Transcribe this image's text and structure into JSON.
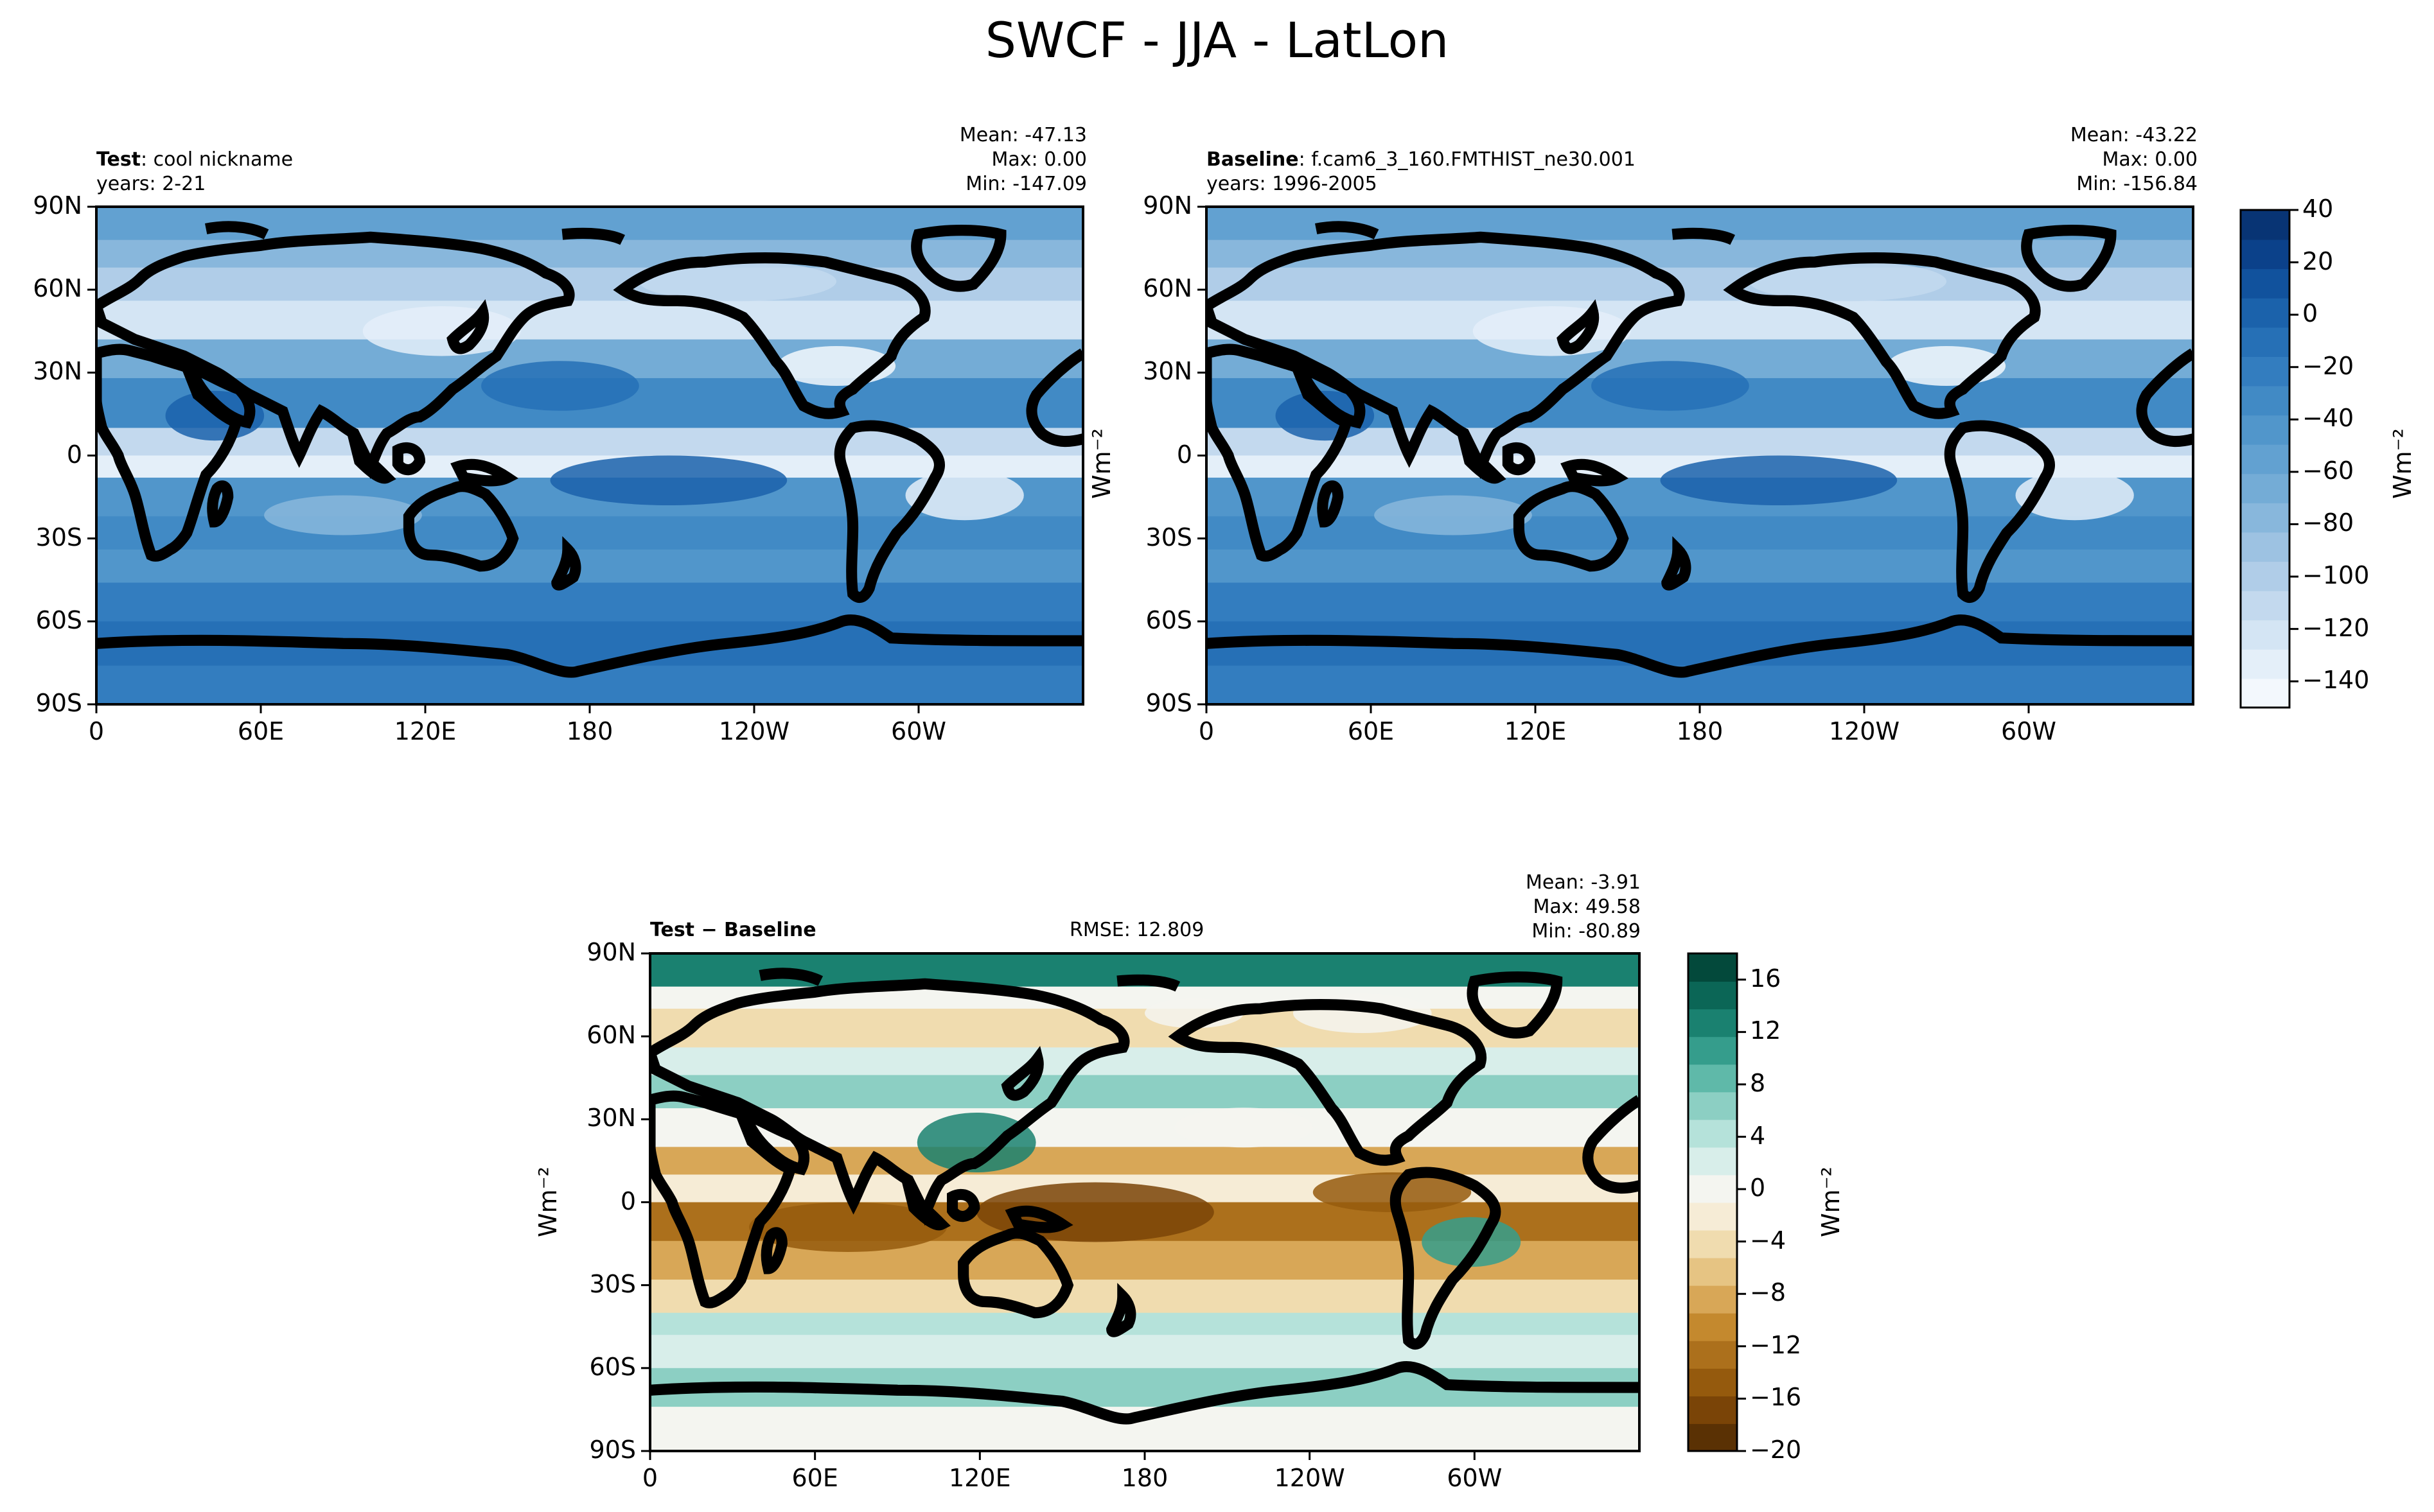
{
  "figure": {
    "title": "SWCF - JJA - LatLon"
  },
  "palettes": {
    "blues": [
      "#f3f8fd",
      "#e4eff9",
      "#d4e5f4",
      "#c3d9ee",
      "#b0cde8",
      "#9dc2e2",
      "#88b7dc",
      "#74acd6",
      "#62a1d1",
      "#5196cb",
      "#418ac5",
      "#337dbf",
      "#2670b6",
      "#1b62ab",
      "#11529d",
      "#0b418a",
      "#083474"
    ],
    "diff": [
      "#5a3104",
      "#7a4407",
      "#955a0d",
      "#ac701c",
      "#c4892e",
      "#d8a757",
      "#e6c483",
      "#f0dcaf",
      "#f6ecd6",
      "#f4f5f0",
      "#d8eeea",
      "#b5e2da",
      "#8ccfc3",
      "#5fb9a9",
      "#359d8c",
      "#1a8170",
      "#0b6656",
      "#03493b"
    ],
    "land_line": "#000000"
  },
  "maps": [
    {
      "name": "test",
      "title_bold": "Test",
      "title_rest": ": cool nickname",
      "years": "years: 2-21",
      "stats": [
        "Mean: -47.13",
        "Max:  0.00",
        "Min: -147.09"
      ],
      "palette": "blues"
    },
    {
      "name": "baseline",
      "title_bold": "Baseline",
      "title_rest": ": f.cam6_3_160.FMTHIST_ne30.001",
      "years": "years: 1996-2005",
      "stats": [
        "Mean: -43.22",
        "Max:  0.00",
        "Min: -156.84"
      ],
      "palette": "blues"
    },
    {
      "name": "difference",
      "title_bold": "Test − Baseline",
      "rmse": "RMSE: 12.809",
      "stats": [
        "Mean: -3.91",
        "Max: 49.58",
        "Min: -80.89"
      ],
      "palette": "diff"
    }
  ],
  "axes": {
    "lat_ticks": [
      "90N",
      "60N",
      "30N",
      "0",
      "30S",
      "60S",
      "90S"
    ],
    "lon_ticks": [
      "0",
      "60E",
      "120E",
      "180",
      "120W",
      "60W"
    ]
  },
  "colorbars": [
    {
      "name": "main",
      "ticks": [
        "40",
        "20",
        "0",
        "−20",
        "−40",
        "−60",
        "−80",
        "−100",
        "−120",
        "−140"
      ],
      "range": [
        -150,
        40
      ],
      "unit": "Wm⁻²"
    },
    {
      "name": "diff",
      "ticks": [
        "16",
        "12",
        "8",
        "4",
        "0",
        "−4",
        "−8",
        "−12",
        "−16",
        "−20"
      ],
      "range": [
        -20,
        18
      ],
      "unit": "Wm⁻²"
    }
  ],
  "unit_label": "Wm⁻²"
}
